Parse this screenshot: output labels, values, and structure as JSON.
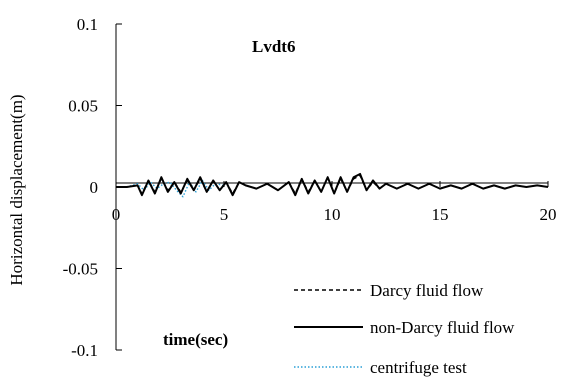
{
  "chart_data": {
    "type": "line",
    "title": "Lvdt6",
    "xlabel": "time(sec)",
    "ylabel": "Horizontal displacement(m)",
    "xlim": [
      0,
      20
    ],
    "ylim": [
      -0.1,
      0.1
    ],
    "x_ticks": [
      0,
      5,
      10,
      15,
      20
    ],
    "x_tick_labels": [
      "0",
      "5",
      "10",
      "15",
      "20"
    ],
    "y_ticks": [
      0.1,
      0.05,
      0,
      -0.05,
      -0.1
    ],
    "y_tick_labels": [
      "0.1",
      "0.05",
      "0",
      "-0.05",
      "-0.1"
    ],
    "grid": false,
    "legend_position": "bottom-right",
    "series": [
      {
        "name": "Darcy fluid flow",
        "color": "#000000",
        "style": "dashed",
        "x": [
          0,
          0.5,
          1.0,
          1.2,
          1.5,
          1.8,
          2.1,
          2.4,
          2.7,
          3.0,
          3.3,
          3.6,
          3.9,
          4.2,
          4.5,
          4.8,
          5.1,
          5.4,
          5.7,
          6.0,
          6.5,
          7.0,
          7.5,
          8.0,
          8.3,
          8.6,
          8.9,
          9.2,
          9.5,
          9.8,
          10.1,
          10.4,
          10.7,
          11.0,
          11.3,
          11.6,
          11.9,
          12.2,
          12.5,
          13.0,
          13.5,
          14.0,
          14.5,
          15.0,
          15.5,
          16.0,
          16.5,
          17.0,
          17.5,
          18.0,
          18.5,
          19.0,
          19.5,
          20.0
        ],
        "y": [
          0,
          0,
          0.001,
          -0.004,
          0.004,
          -0.003,
          0.005,
          -0.002,
          0.003,
          -0.003,
          0.004,
          -0.002,
          0.005,
          -0.003,
          0.004,
          -0.002,
          0.003,
          -0.004,
          0.003,
          0.001,
          -0.001,
          0.002,
          -0.002,
          0.003,
          -0.004,
          0.005,
          -0.003,
          0.004,
          -0.003,
          0.006,
          -0.004,
          0.005,
          -0.003,
          0.005,
          0.007,
          -0.002,
          0.003,
          -0.001,
          0.002,
          -0.001,
          0.002,
          -0.001,
          0.002,
          -0.001,
          0.001,
          -0.001,
          0.002,
          -0.001,
          0.001,
          -0.001,
          0.001,
          0,
          0.001,
          0
        ]
      },
      {
        "name": "non-Darcy fluid flow",
        "color": "#000000",
        "style": "solid",
        "x": [
          0,
          0.5,
          1.0,
          1.2,
          1.5,
          1.8,
          2.1,
          2.4,
          2.7,
          3.0,
          3.3,
          3.6,
          3.9,
          4.2,
          4.5,
          4.8,
          5.1,
          5.4,
          5.7,
          6.0,
          6.5,
          7.0,
          7.5,
          8.0,
          8.3,
          8.6,
          8.9,
          9.2,
          9.5,
          9.8,
          10.1,
          10.4,
          10.7,
          11.0,
          11.3,
          11.6,
          11.9,
          12.2,
          12.5,
          13.0,
          13.5,
          14.0,
          14.5,
          15.0,
          15.5,
          16.0,
          16.5,
          17.0,
          17.5,
          18.0,
          18.5,
          19.0,
          19.5,
          20.0
        ],
        "y": [
          0,
          0,
          0.001,
          -0.005,
          0.004,
          -0.004,
          0.006,
          -0.003,
          0.003,
          -0.004,
          0.005,
          -0.002,
          0.006,
          -0.003,
          0.004,
          -0.002,
          0.003,
          -0.005,
          0.003,
          0.001,
          -0.001,
          0.002,
          -0.002,
          0.003,
          -0.005,
          0.005,
          -0.004,
          0.004,
          -0.003,
          0.006,
          -0.004,
          0.006,
          -0.003,
          0.006,
          0.008,
          -0.002,
          0.004,
          -0.001,
          0.002,
          -0.001,
          0.002,
          -0.001,
          0.002,
          -0.001,
          0.001,
          -0.001,
          0.002,
          -0.001,
          0.001,
          -0.001,
          0.001,
          0,
          0.001,
          0
        ]
      },
      {
        "name": "centrifuge test",
        "color": "#2a9fd6",
        "style": "dotted",
        "x": [
          0,
          0.5,
          1.0,
          1.3,
          1.6,
          1.9,
          2.2,
          2.5,
          2.8,
          3.1,
          3.4,
          3.7,
          4.0,
          4.3,
          4.6,
          5.0
        ],
        "y": [
          0,
          0,
          0.002,
          -0.002,
          0.003,
          -0.001,
          0.002,
          0.003,
          -0.002,
          -0.006,
          0.003,
          -0.003,
          0.004,
          -0.002,
          0.002,
          0.001
        ]
      }
    ]
  }
}
